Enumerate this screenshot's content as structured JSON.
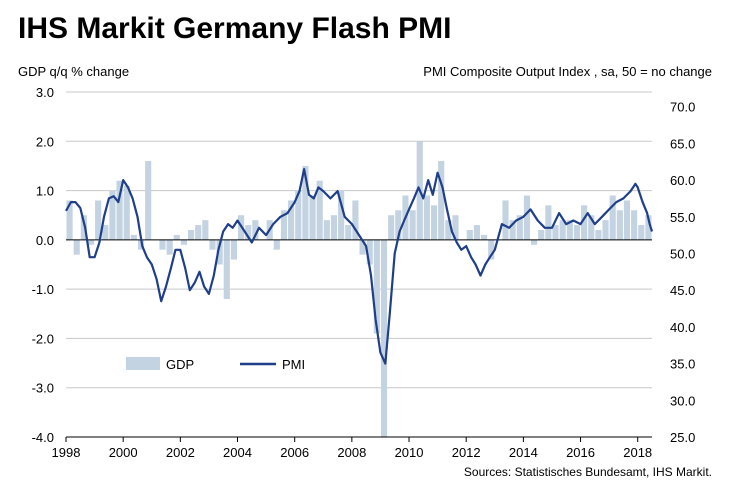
{
  "chart_data": {
    "type": "bar+line",
    "title": "IHS Markit Germany Flash PMI",
    "left_axis_label": "GDP q/q % change",
    "right_axis_label": "PMI Composite  Output  Index  , sa, 50 = no  change",
    "source": "Sources: Statistisches Bundesamt, IHS Markit.",
    "y_left": {
      "min": -4.0,
      "max": 3.0,
      "ticks": [
        "3.0",
        "2.0",
        "1.0",
        "0.0",
        "-1.0",
        "-2.0",
        "-3.0",
        "-4.0"
      ],
      "tick_values": [
        3,
        2,
        1,
        0,
        -1,
        -2,
        -3,
        -4
      ]
    },
    "y_right": {
      "min": 25.0,
      "max": 72.0,
      "ticks": [
        "70.0",
        "65.0",
        "60.0",
        "55.0",
        "50.0",
        "45.0",
        "40.0",
        "35.0",
        "30.0",
        "25.0"
      ],
      "tick_values": [
        70,
        65,
        60,
        55,
        50,
        45,
        40,
        35,
        30,
        25
      ]
    },
    "x_ticks": [
      "1998",
      "2000",
      "2002",
      "2004",
      "2006",
      "2008",
      "2010",
      "2012",
      "2014",
      "2016",
      "2018"
    ],
    "x_tick_years": [
      1998,
      2000,
      2002,
      2004,
      2006,
      2008,
      2010,
      2012,
      2014,
      2016,
      2018
    ],
    "x_range": [
      1998.0,
      2018.5
    ],
    "grid": true,
    "legend": {
      "position": "bottom-left",
      "items": [
        {
          "label": "GDP",
          "color": "#c4d3e2",
          "kind": "bar"
        },
        {
          "label": "PMI",
          "color": "#1f3f8a",
          "kind": "line"
        }
      ]
    },
    "series": [
      {
        "name": "GDP",
        "kind": "bar",
        "color": "#c4d3e2",
        "quarters": [
          "1998Q1",
          "1998Q2",
          "1998Q3",
          "1998Q4",
          "1999Q1",
          "1999Q2",
          "1999Q3",
          "1999Q4",
          "2000Q1",
          "2000Q2",
          "2000Q3",
          "2000Q4",
          "2001Q1",
          "2001Q2",
          "2001Q3",
          "2001Q4",
          "2002Q1",
          "2002Q2",
          "2002Q3",
          "2002Q4",
          "2003Q1",
          "2003Q2",
          "2003Q3",
          "2003Q4",
          "2004Q1",
          "2004Q2",
          "2004Q3",
          "2004Q4",
          "2005Q1",
          "2005Q2",
          "2005Q3",
          "2005Q4",
          "2006Q1",
          "2006Q2",
          "2006Q3",
          "2006Q4",
          "2007Q1",
          "2007Q2",
          "2007Q3",
          "2007Q4",
          "2008Q1",
          "2008Q2",
          "2008Q3",
          "2008Q4",
          "2009Q1",
          "2009Q2",
          "2009Q3",
          "2009Q4",
          "2010Q1",
          "2010Q2",
          "2010Q3",
          "2010Q4",
          "2011Q1",
          "2011Q2",
          "2011Q3",
          "2011Q4",
          "2012Q1",
          "2012Q2",
          "2012Q3",
          "2012Q4",
          "2013Q1",
          "2013Q2",
          "2013Q3",
          "2013Q4",
          "2014Q1",
          "2014Q2",
          "2014Q3",
          "2014Q4",
          "2015Q1",
          "2015Q2",
          "2015Q3",
          "2015Q4",
          "2016Q1",
          "2016Q2",
          "2016Q3",
          "2016Q4",
          "2017Q1",
          "2017Q2",
          "2017Q3",
          "2017Q4",
          "2018Q1",
          "2018Q2"
        ],
        "values": [
          0.8,
          -0.3,
          0.5,
          -0.1,
          0.8,
          0.3,
          1.0,
          1.2,
          1.1,
          0.1,
          -0.2,
          1.6,
          0.0,
          -0.2,
          -0.3,
          0.1,
          -0.1,
          0.2,
          0.3,
          0.4,
          -0.2,
          -0.5,
          -1.2,
          -0.4,
          0.5,
          0.3,
          0.4,
          0.0,
          0.4,
          -0.2,
          0.6,
          0.8,
          1.0,
          1.5,
          0.9,
          1.2,
          0.4,
          0.5,
          1.0,
          0.3,
          0.8,
          -0.3,
          -0.5,
          -1.9,
          -4.0,
          0.5,
          0.6,
          0.9,
          0.6,
          2.0,
          0.9,
          0.7,
          1.6,
          0.4,
          0.5,
          0.0,
          0.2,
          0.3,
          0.1,
          -0.4,
          0.0,
          0.8,
          0.4,
          0.5,
          0.9,
          -0.1,
          0.2,
          0.7,
          0.3,
          0.4,
          0.4,
          0.3,
          0.7,
          0.5,
          0.2,
          0.4,
          0.9,
          0.6,
          0.8,
          0.6,
          0.3,
          0.5
        ]
      },
      {
        "name": "PMI",
        "kind": "line",
        "color": "#1f3f8a",
        "x": [
          1998.0,
          1998.17,
          1998.33,
          1998.5,
          1998.67,
          1998.83,
          1999.0,
          1999.17,
          1999.33,
          1999.5,
          1999.67,
          1999.83,
          2000.0,
          2000.17,
          2000.33,
          2000.5,
          2000.67,
          2000.83,
          2001.0,
          2001.17,
          2001.33,
          2001.5,
          2001.67,
          2001.83,
          2002.0,
          2002.17,
          2002.33,
          2002.5,
          2002.67,
          2002.83,
          2003.0,
          2003.17,
          2003.33,
          2003.5,
          2003.67,
          2003.83,
          2004.0,
          2004.25,
          2004.5,
          2004.75,
          2005.0,
          2005.25,
          2005.5,
          2005.75,
          2006.0,
          2006.17,
          2006.33,
          2006.5,
          2006.67,
          2006.83,
          2007.0,
          2007.25,
          2007.5,
          2007.75,
          2008.0,
          2008.25,
          2008.5,
          2008.67,
          2008.83,
          2009.0,
          2009.17,
          2009.33,
          2009.5,
          2009.67,
          2009.83,
          2010.0,
          2010.17,
          2010.33,
          2010.5,
          2010.67,
          2010.83,
          2011.0,
          2011.17,
          2011.33,
          2011.5,
          2011.67,
          2011.83,
          2012.0,
          2012.17,
          2012.33,
          2012.5,
          2012.67,
          2012.83,
          2013.0,
          2013.25,
          2013.5,
          2013.75,
          2014.0,
          2014.25,
          2014.5,
          2014.75,
          2015.0,
          2015.25,
          2015.5,
          2015.75,
          2016.0,
          2016.25,
          2016.5,
          2016.75,
          2017.0,
          2017.25,
          2017.5,
          2017.75,
          2017.92,
          2018.0,
          2018.17,
          2018.33,
          2018.42,
          2018.5
        ],
        "values": [
          55.8,
          57.0,
          57.0,
          56.2,
          53.5,
          49.5,
          49.5,
          51.5,
          55.0,
          57.5,
          57.8,
          57.0,
          60.0,
          59.0,
          57.5,
          55.0,
          51.0,
          49.5,
          48.5,
          46.5,
          43.5,
          45.5,
          48.0,
          50.5,
          50.5,
          48.0,
          45.0,
          46.0,
          47.5,
          45.5,
          44.5,
          47.0,
          50.5,
          53.0,
          54.0,
          53.5,
          54.5,
          53.0,
          51.5,
          53.5,
          52.5,
          54.0,
          55.0,
          55.5,
          57.0,
          58.5,
          61.5,
          58.0,
          57.5,
          59.0,
          58.5,
          57.5,
          58.5,
          55.0,
          54.0,
          52.5,
          51.0,
          47.0,
          41.0,
          36.5,
          35.0,
          42.0,
          50.0,
          53.0,
          54.5,
          56.0,
          57.5,
          59.0,
          57.5,
          60.0,
          58.0,
          61.0,
          59.0,
          56.0,
          53.0,
          51.5,
          50.5,
          51.0,
          49.5,
          48.5,
          47.0,
          48.5,
          49.5,
          50.5,
          54.0,
          53.5,
          54.5,
          55.0,
          56.0,
          54.5,
          53.5,
          53.5,
          55.5,
          54.0,
          54.5,
          54.0,
          55.5,
          54.0,
          55.0,
          56.0,
          57.0,
          57.5,
          58.5,
          59.5,
          59.0,
          57.0,
          55.5,
          54.0,
          53.0
        ]
      }
    ]
  }
}
